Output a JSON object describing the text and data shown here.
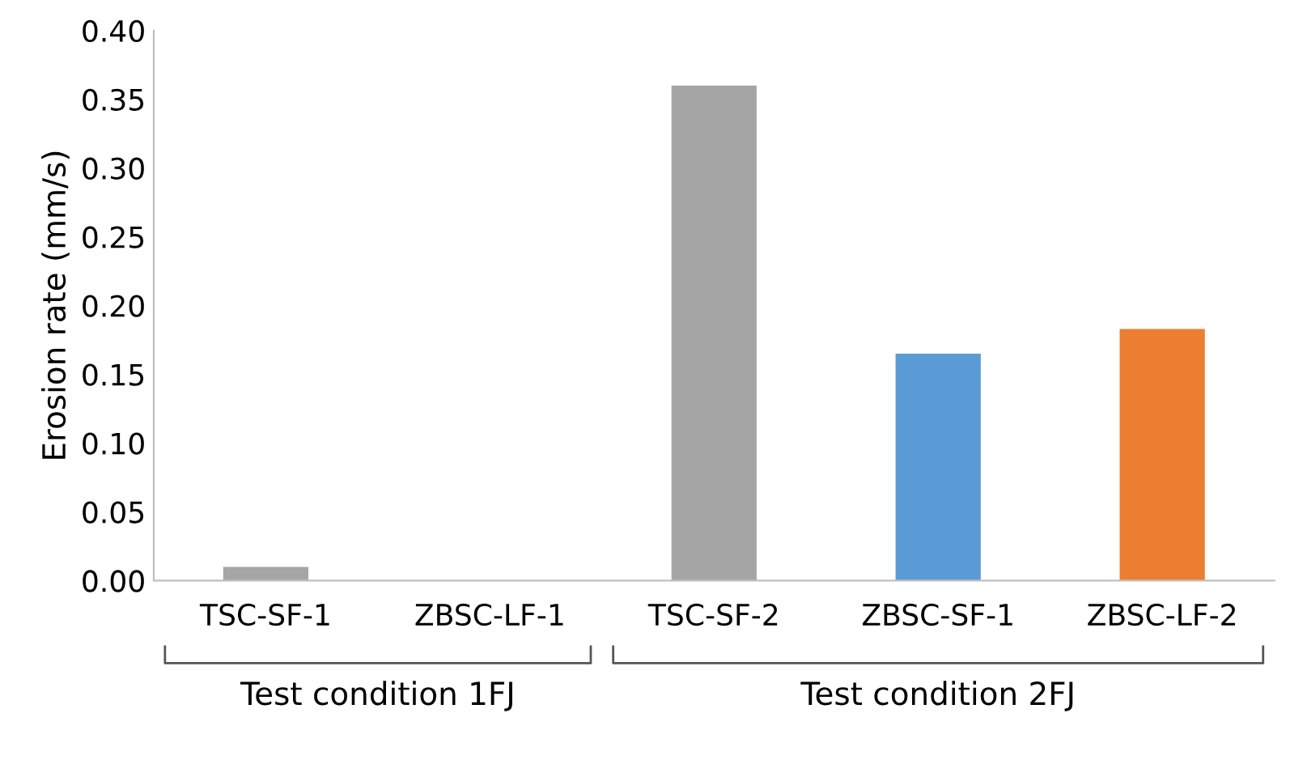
{
  "chart_data": {
    "type": "bar",
    "ylabel": "Erosion rate (mm/s)",
    "categories": [
      "TSC-SF-1",
      "ZBSC-LF-1",
      "TSC-SF-2",
      "ZBSC-SF-1",
      "ZBSC-LF-2"
    ],
    "values": [
      0.01,
      0,
      0.36,
      0.165,
      0.183
    ],
    "colors": [
      "#a5a5a5",
      "#ed7d31",
      "#a5a5a5",
      "#5b9bd5",
      "#ed7d31"
    ],
    "ylim": [
      0,
      0.4
    ],
    "yticks": [
      {
        "value": 0,
        "label": "0.00"
      },
      {
        "value": 0.05,
        "label": "0.05"
      },
      {
        "value": 0.1,
        "label": "0.10"
      },
      {
        "value": 0.15,
        "label": "0.15"
      },
      {
        "value": 0.2,
        "label": "0.20"
      },
      {
        "value": 0.25,
        "label": "0.25"
      },
      {
        "value": 0.3,
        "label": "0.30"
      },
      {
        "value": 0.35,
        "label": "0.35"
      },
      {
        "value": 0.4,
        "label": "0.40"
      }
    ],
    "grid": false,
    "annotations": [
      "Test condition 1FJ",
      "Test condition 2FJ"
    ]
  }
}
